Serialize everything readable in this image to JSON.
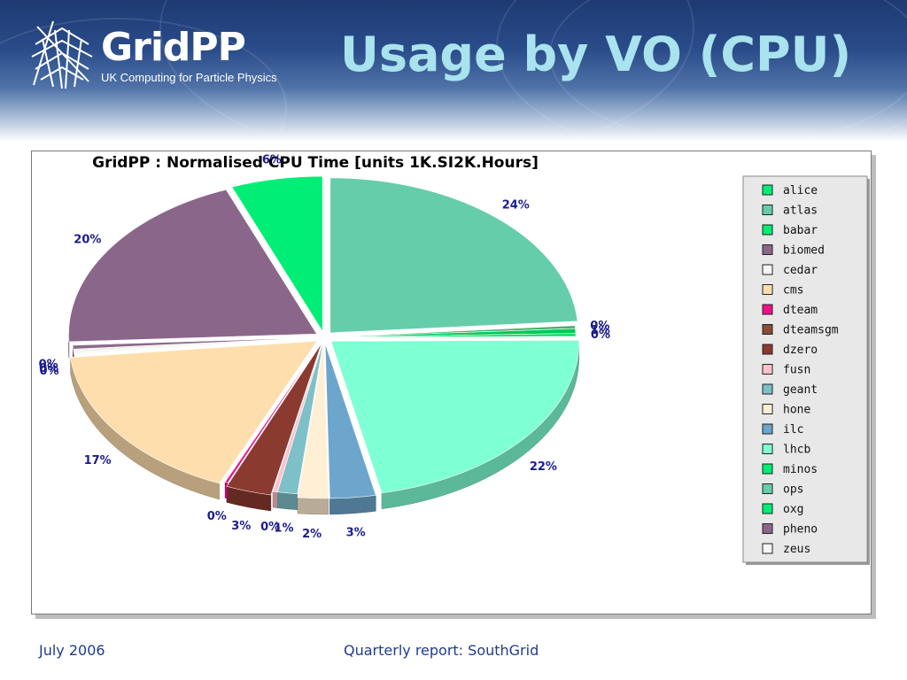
{
  "slide": {
    "title": "Usage by VO (CPU)",
    "logo": {
      "name": "GridPP",
      "subtitle": "UK Computing for Particle Physics"
    },
    "footer": {
      "date": "July 2006",
      "report": "Quarterly report: SouthGrid"
    }
  },
  "chart_data": {
    "type": "pie",
    "title": "GridPP : Normalised CPU Time [units 1K.SI2K.Hours]",
    "legend_position": "right",
    "style": "3d-exploded",
    "legend": [
      "alice",
      "atlas",
      "babar",
      "biomed",
      "cedar",
      "cms",
      "dteam",
      "dteamsgm",
      "dzero",
      "fusn",
      "geant",
      "hone",
      "ilc",
      "lhcb",
      "minos",
      "ops",
      "oxg",
      "pheno",
      "zeus"
    ],
    "slices": [
      {
        "name": "atlas",
        "value": 24,
        "label": "24%",
        "color": "#66cdaa"
      },
      {
        "name": "ops",
        "value": 0.3,
        "label": "0%",
        "color": "#3cb371"
      },
      {
        "name": "minos",
        "value": 0.5,
        "label": "1%",
        "color": "#00c957"
      },
      {
        "name": "oxg",
        "value": 0.3,
        "label": "0%",
        "color": "#00e05a"
      },
      {
        "name": "lhcb",
        "value": 22,
        "label": "22%",
        "color": "#7fffd4"
      },
      {
        "name": "ilc",
        "value": 3,
        "label": "3%",
        "color": "#6ca6cd"
      },
      {
        "name": "hone",
        "value": 2,
        "label": "2%",
        "color": "#ffefd5"
      },
      {
        "name": "geant",
        "value": 1.3,
        "label": "1%",
        "color": "#7ec0c8"
      },
      {
        "name": "fusn",
        "value": 0.3,
        "label": "0%",
        "color": "#ffc0cb"
      },
      {
        "name": "dzero",
        "value": 3,
        "label": "3%",
        "color": "#8b3a2f"
      },
      {
        "name": "dteam",
        "value": 0.2,
        "label": "0%",
        "color": "#ee1289"
      },
      {
        "name": "cms",
        "value": 17,
        "label": "17%",
        "color": "#ffdead"
      },
      {
        "name": "zeus",
        "value": 0.2,
        "label": "0%",
        "color": "#f5f5f5"
      },
      {
        "name": "cedar",
        "value": 0.3,
        "label": "0%",
        "color": "#f0f0e8"
      },
      {
        "name": "pheno",
        "value": 0.4,
        "label": "0%",
        "color": "#8b6a8b"
      },
      {
        "name": "biomed",
        "value": 20,
        "label": "20%",
        "color": "#8b668b"
      },
      {
        "name": "alice",
        "value": 6,
        "label": "6%",
        "color": "#00ee76"
      }
    ],
    "colors": {
      "alice": "#00ee76",
      "atlas": "#66cdaa",
      "babar": "#00ee76",
      "biomed": "#8b668b",
      "cedar": "#f5f5f5",
      "cms": "#ffdead",
      "dteam": "#ee1289",
      "dteamsgm": "#8b4c39",
      "dzero": "#8b3a2f",
      "fusn": "#ffc0cb",
      "geant": "#7ec0c8",
      "hone": "#ffefd5",
      "ilc": "#6ca6cd",
      "lhcb": "#7fffd4",
      "minos": "#00ee76",
      "ops": "#66cdaa",
      "oxg": "#00ee76",
      "pheno": "#8b668b",
      "zeus": "#f5f5f5"
    }
  }
}
